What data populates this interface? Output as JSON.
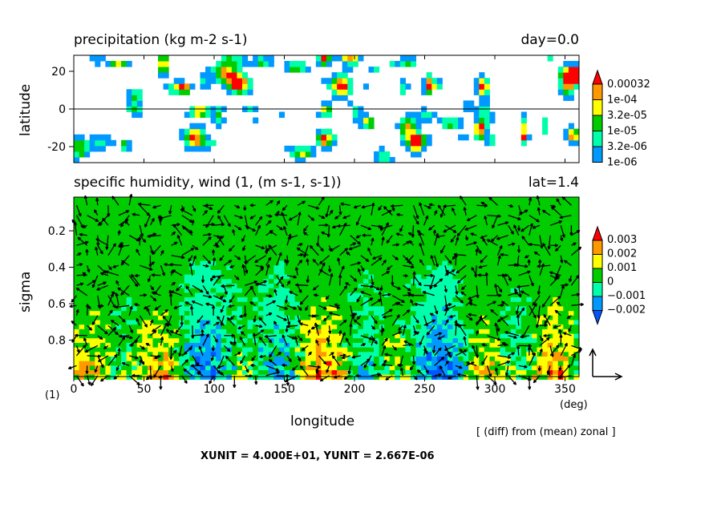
{
  "chart_data": [
    {
      "type": "heatmap",
      "title": "precipitation (kg m-2 s-1)",
      "title_right": "day=0.0",
      "ylabel": "latitude",
      "xlim": [
        0,
        360
      ],
      "ylim": [
        -28.5,
        28.5
      ],
      "yticks": [
        "20",
        "0",
        "-20"
      ],
      "ytick_values": [
        20,
        0,
        -20
      ],
      "reference_line": 0,
      "colorbar": {
        "labels": [
          "0.00032",
          "1e-04",
          "3.2e-05",
          "1e-05",
          "3.2e-06",
          "1e-06"
        ],
        "colors": [
          "#ff0000",
          "#ff9900",
          "#ffff00",
          "#00cc00",
          "#00ffaa",
          "#0099ff"
        ],
        "extend": "max"
      }
    },
    {
      "type": "heatmap",
      "title": "specific humidity, wind (1, (m s-1, s-1))",
      "title_right": "lat=1.4",
      "xlabel": "longitude",
      "ylabel": "sigma",
      "xlim": [
        0,
        360
      ],
      "ylim": [
        1.0,
        0.015
      ],
      "xticks": [
        "0",
        "50",
        "100",
        "150",
        "200",
        "250",
        "300",
        "350"
      ],
      "xtick_values": [
        0,
        50,
        100,
        150,
        200,
        250,
        300,
        350
      ],
      "x_unit_label": "(deg)",
      "y_unit_label": "(1)",
      "yticks": [
        "0.2",
        "0.4",
        "0.6",
        "0.8"
      ],
      "ytick_values": [
        0.2,
        0.4,
        0.6,
        0.8
      ],
      "overlay": "wind vectors",
      "colorbar": {
        "labels": [
          "0.003",
          "0.002",
          "0.001",
          "0",
          "−0.001",
          "−0.002"
        ],
        "colors": [
          "#ff0000",
          "#ff9900",
          "#ffff00",
          "#00cc00",
          "#00ffaa",
          "#0099ff",
          "#0055ff"
        ],
        "extend": "both"
      },
      "note": "[ (diff) from (mean) zonal ]",
      "units": "XUNIT = 4.000E+01, YUNIT = 2.667E-06"
    }
  ]
}
